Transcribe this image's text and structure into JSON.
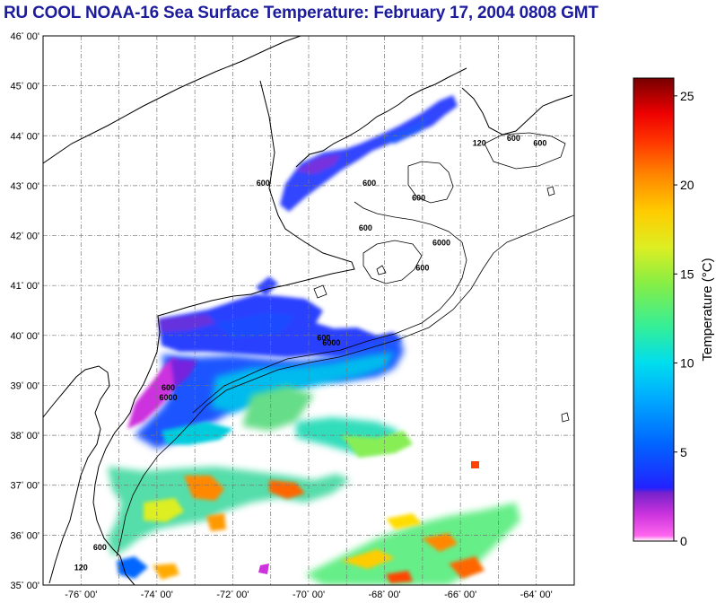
{
  "title": "RU COOL  NOAA-16  Sea Surface Temperature:  February 17, 2004 0808 GMT",
  "map": {
    "lon_range": [
      -77,
      -63
    ],
    "lat_range": [
      35,
      46
    ],
    "lat_labels": [
      {
        "value": 46,
        "deg": "46",
        "min": "00'"
      },
      {
        "value": 45,
        "deg": "45",
        "min": "00'"
      },
      {
        "value": 44,
        "deg": "44",
        "min": "00'"
      },
      {
        "value": 43,
        "deg": "43",
        "min": "00'"
      },
      {
        "value": 42,
        "deg": "42",
        "min": "00'"
      },
      {
        "value": 41,
        "deg": "41",
        "min": "00'"
      },
      {
        "value": 40,
        "deg": "40",
        "min": "00'"
      },
      {
        "value": 39,
        "deg": "39",
        "min": "00'"
      },
      {
        "value": 38,
        "deg": "38",
        "min": "00'"
      },
      {
        "value": 37,
        "deg": "37",
        "min": "00'"
      },
      {
        "value": 36,
        "deg": "36",
        "min": "00'"
      },
      {
        "value": 35,
        "deg": "35",
        "min": "00'"
      }
    ],
    "lon_labels": [
      {
        "value": -76,
        "deg": "-76",
        "min": "00'"
      },
      {
        "value": -74,
        "deg": "-74",
        "min": "00'"
      },
      {
        "value": -72,
        "deg": "-72",
        "min": "00'"
      },
      {
        "value": -70,
        "deg": "-70",
        "min": "00'"
      },
      {
        "value": -68,
        "deg": "-68",
        "min": "00'"
      },
      {
        "value": -66,
        "deg": "-66",
        "min": "00'"
      },
      {
        "value": -64,
        "deg": "-64",
        "min": "00'"
      }
    ],
    "contour_labels": [
      {
        "text": "600",
        "lon": -71.2,
        "lat": 43.0
      },
      {
        "text": "600",
        "lon": -68.4,
        "lat": 43.0
      },
      {
        "text": "600",
        "lon": -67.1,
        "lat": 42.7
      },
      {
        "text": "600",
        "lon": -68.5,
        "lat": 42.1
      },
      {
        "text": "600",
        "lon": -67.0,
        "lat": 41.3
      },
      {
        "text": "6000",
        "lon": -66.5,
        "lat": 41.8
      },
      {
        "text": "120",
        "lon": -65.5,
        "lat": 43.8
      },
      {
        "text": "600",
        "lon": -64.6,
        "lat": 43.9
      },
      {
        "text": "600",
        "lon": -63.9,
        "lat": 43.8
      },
      {
        "text": "600",
        "lon": -69.6,
        "lat": 39.9
      },
      {
        "text": "6000",
        "lon": -69.4,
        "lat": 39.8
      },
      {
        "text": "600",
        "lon": -73.7,
        "lat": 38.9
      },
      {
        "text": "6000",
        "lon": -73.7,
        "lat": 38.7
      },
      {
        "text": "120",
        "lon": -76.0,
        "lat": 35.3
      },
      {
        "text": "600",
        "lon": -75.5,
        "lat": 35.7
      }
    ]
  },
  "colorbar": {
    "title": "Temperature (°C)",
    "range": [
      0,
      26
    ],
    "ticks": [
      {
        "value": 25,
        "label": "25"
      },
      {
        "value": 20,
        "label": "20"
      },
      {
        "value": 15,
        "label": "15"
      },
      {
        "value": 10,
        "label": "10"
      },
      {
        "value": 5,
        "label": "5"
      },
      {
        "value": 0,
        "label": "0"
      }
    ],
    "stops": [
      {
        "value": 0,
        "color": "#ffffff"
      },
      {
        "value": 0.3,
        "color": "#ff66ee"
      },
      {
        "value": 1.5,
        "color": "#cc33dd"
      },
      {
        "value": 2.7,
        "color": "#7722cc"
      },
      {
        "value": 3.0,
        "color": "#2222ff"
      },
      {
        "value": 5.5,
        "color": "#0066ff"
      },
      {
        "value": 8.0,
        "color": "#00aaff"
      },
      {
        "value": 10.0,
        "color": "#00ddee"
      },
      {
        "value": 12.0,
        "color": "#33ee99"
      },
      {
        "value": 14.5,
        "color": "#88ee44"
      },
      {
        "value": 16.5,
        "color": "#ddee22"
      },
      {
        "value": 18.5,
        "color": "#ffcc00"
      },
      {
        "value": 20.5,
        "color": "#ff8800"
      },
      {
        "value": 22.5,
        "color": "#ff3300"
      },
      {
        "value": 24.0,
        "color": "#ee0000"
      },
      {
        "value": 26.0,
        "color": "#770000"
      }
    ]
  },
  "colors": {
    "title": "#1c1c9c",
    "cold": "#3344ff",
    "coastal": "#9933dd",
    "warm": "#ffaa00"
  }
}
